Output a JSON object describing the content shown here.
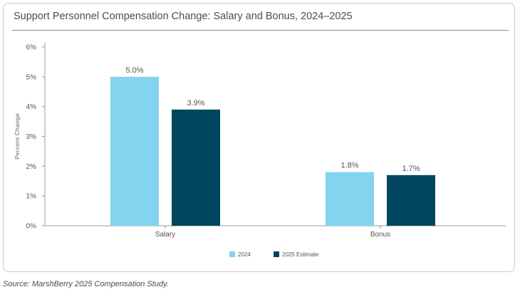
{
  "chart_data": {
    "type": "bar",
    "title": "Support Personnel Compensation Change: Salary and Bonus, 2024–2025",
    "ylabel": "Percent Change",
    "xlabel": "",
    "categories": [
      "Salary",
      "Bonus"
    ],
    "series": [
      {
        "name": "2024",
        "values": [
          5.0,
          1.8
        ],
        "labels": [
          "5.0%",
          "1.8%"
        ],
        "color": "#84d3ef"
      },
      {
        "name": "2025 Estimate",
        "values": [
          3.9,
          1.7
        ],
        "labels": [
          "3.9%",
          "1.7%"
        ],
        "color": "#00465f"
      }
    ],
    "ylim": [
      0,
      6
    ],
    "yticks": [
      0,
      1,
      2,
      3,
      4,
      5,
      6
    ],
    "ytick_labels": [
      "0%",
      "1%",
      "2%",
      "3%",
      "4%",
      "5%",
      "6%"
    ],
    "grid": false,
    "legend_position": "bottom-center"
  },
  "source": "Source: MarshBerry 2025 Compensation Study."
}
